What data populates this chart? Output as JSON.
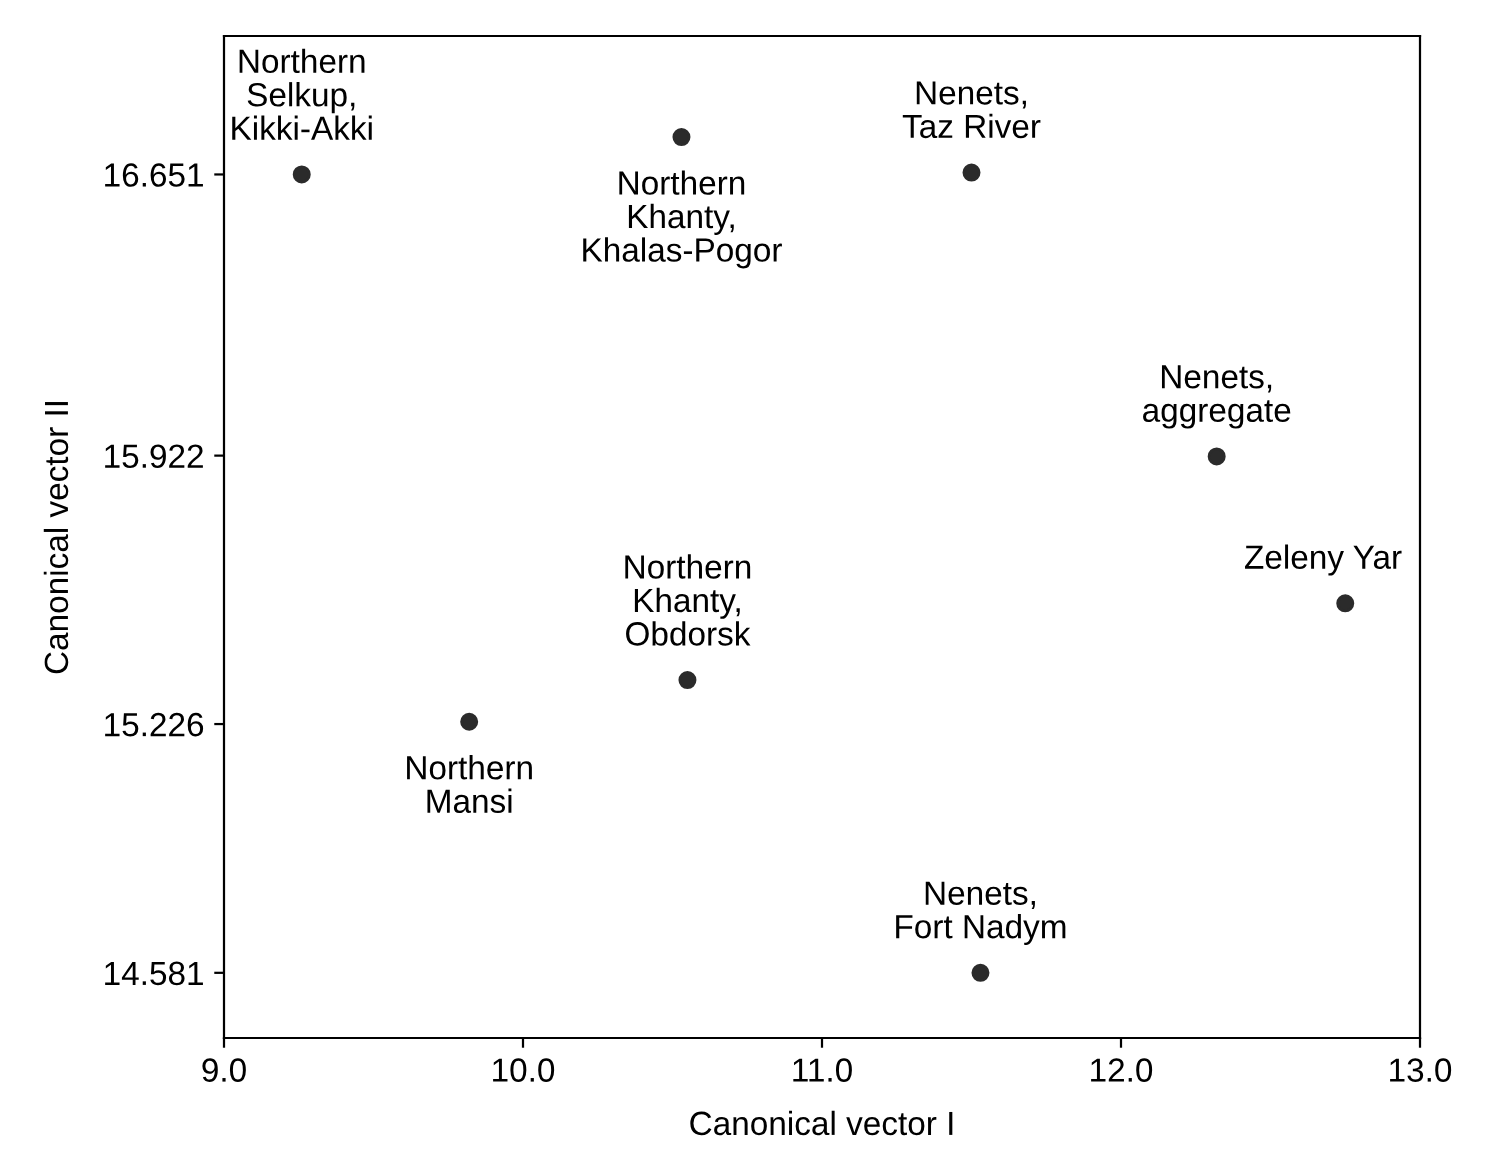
{
  "chart_data": {
    "type": "scatter",
    "xlabel": "Canonical vector I",
    "ylabel": "Canonical vector II",
    "series": [
      {
        "color": "#2b2b2b",
        "x": [
          9.26,
          10.53,
          11.5,
          12.32,
          12.75,
          10.55,
          9.82,
          11.53
        ],
        "values": [
          16.651,
          16.748,
          16.656,
          15.92,
          15.539,
          15.34,
          15.232,
          14.581
        ]
      }
    ],
    "xlim": [
      9.0,
      13.0
    ],
    "ylim": [
      14.412,
      17.01
    ],
    "xticks": [
      {
        "value": 9,
        "label": "9.0"
      },
      {
        "value": 10,
        "label": "10.0"
      },
      {
        "value": 11,
        "label": "11.0"
      },
      {
        "value": 12,
        "label": "12.0"
      },
      {
        "value": 13,
        "label": "13.0"
      }
    ],
    "yticks": [
      14.581,
      15.226,
      15.922,
      16.651
    ],
    "marker": "circle",
    "grid": false,
    "legend": false,
    "annotations": [
      {
        "text": "Northern\nSelkup,\nKikki-Akki",
        "x": 9.26,
        "y": 16.651
      },
      {
        "text": "Northern\nKhanty,\nKhalas-Pogor",
        "x": 10.53,
        "y": 16.748
      },
      {
        "text": "Nenets,\nTaz River",
        "x": 11.5,
        "y": 16.656
      },
      {
        "text": "Nenets,\naggregate",
        "x": 12.32,
        "y": 15.92
      },
      {
        "text": "Zeleny Yar",
        "x": 12.75,
        "y": 15.539
      },
      {
        "text": "Northern\nKhanty,\nObdorsk",
        "x": 10.55,
        "y": 15.34
      },
      {
        "text": "Northern\nMansi",
        "x": 9.82,
        "y": 15.232
      },
      {
        "text": "Nenets,\nFort Nadym",
        "x": 11.53,
        "y": 14.581
      }
    ]
  }
}
